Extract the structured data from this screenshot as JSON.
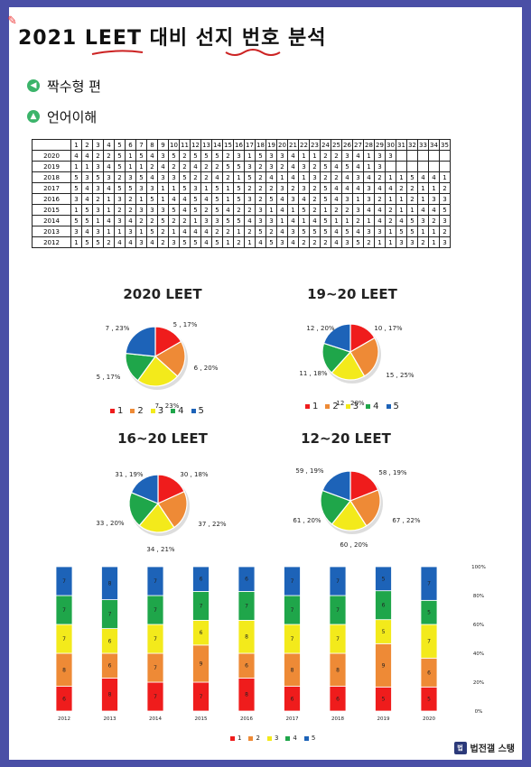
{
  "title": "2021 LEET 대비 선지 번호 분석",
  "section1": {
    "label": "짝수형 편",
    "icon": "speaker-icon"
  },
  "section2": {
    "label": "언어이해",
    "icon": "book-icon"
  },
  "brand": {
    "label": "법전갤 스탱",
    "icon": "logo-icon"
  },
  "colors": {
    "1": "#ef1c1c",
    "2": "#ee8a36",
    "3": "#f3ea1b",
    "4": "#1fa64a",
    "5": "#1d63b8"
  },
  "answer_table": {
    "columns": [
      "1",
      "2",
      "3",
      "4",
      "5",
      "6",
      "7",
      "8",
      "9",
      "10",
      "11",
      "12",
      "13",
      "14",
      "15",
      "16",
      "17",
      "18",
      "19",
      "20",
      "21",
      "22",
      "23",
      "24",
      "25",
      "26",
      "27",
      "28",
      "29",
      "30",
      "31",
      "32",
      "33",
      "34",
      "35"
    ],
    "rows": [
      {
        "year": "2020",
        "values": [
          "4",
          "4",
          "2",
          "2",
          "5",
          "1",
          "5",
          "4",
          "3",
          "5",
          "2",
          "5",
          "5",
          "5",
          "2",
          "3",
          "1",
          "5",
          "3",
          "3",
          "4",
          "1",
          "1",
          "2",
          "2",
          "3",
          "4",
          "1",
          "3",
          "3",
          "",
          "",
          "",
          "",
          ""
        ]
      },
      {
        "year": "2019",
        "values": [
          "1",
          "1",
          "3",
          "4",
          "5",
          "1",
          "1",
          "2",
          "4",
          "2",
          "2",
          "4",
          "2",
          "2",
          "5",
          "5",
          "3",
          "2",
          "3",
          "2",
          "4",
          "3",
          "2",
          "5",
          "4",
          "5",
          "4",
          "1",
          "3",
          "",
          "",
          "",
          "",
          "",
          ""
        ]
      },
      {
        "year": "2018",
        "values": [
          "5",
          "3",
          "5",
          "3",
          "2",
          "3",
          "5",
          "4",
          "3",
          "3",
          "5",
          "2",
          "2",
          "4",
          "2",
          "1",
          "5",
          "2",
          "4",
          "1",
          "4",
          "1",
          "3",
          "2",
          "2",
          "4",
          "3",
          "4",
          "2",
          "1",
          "1",
          "5",
          "4",
          "4",
          "1"
        ]
      },
      {
        "year": "2017",
        "values": [
          "5",
          "4",
          "3",
          "4",
          "5",
          "5",
          "3",
          "3",
          "1",
          "1",
          "5",
          "3",
          "1",
          "5",
          "1",
          "5",
          "2",
          "2",
          "2",
          "3",
          "2",
          "3",
          "2",
          "5",
          "4",
          "4",
          "4",
          "3",
          "4",
          "4",
          "2",
          "2",
          "1",
          "1",
          "2"
        ]
      },
      {
        "year": "2016",
        "values": [
          "3",
          "4",
          "2",
          "1",
          "3",
          "2",
          "1",
          "5",
          "1",
          "4",
          "4",
          "5",
          "4",
          "5",
          "1",
          "5",
          "3",
          "2",
          "5",
          "4",
          "3",
          "4",
          "2",
          "5",
          "4",
          "3",
          "1",
          "3",
          "2",
          "1",
          "1",
          "2",
          "1",
          "3",
          "3"
        ]
      },
      {
        "year": "2015",
        "values": [
          "1",
          "5",
          "3",
          "1",
          "2",
          "2",
          "3",
          "3",
          "3",
          "5",
          "4",
          "5",
          "2",
          "5",
          "4",
          "2",
          "2",
          "3",
          "1",
          "4",
          "1",
          "5",
          "2",
          "1",
          "2",
          "2",
          "3",
          "4",
          "4",
          "2",
          "1",
          "1",
          "4",
          "4",
          "5"
        ]
      },
      {
        "year": "2014",
        "values": [
          "5",
          "5",
          "1",
          "4",
          "3",
          "4",
          "2",
          "2",
          "5",
          "2",
          "2",
          "1",
          "3",
          "3",
          "5",
          "5",
          "4",
          "3",
          "3",
          "1",
          "4",
          "1",
          "4",
          "5",
          "1",
          "1",
          "2",
          "1",
          "4",
          "2",
          "4",
          "5",
          "3",
          "2",
          "3"
        ]
      },
      {
        "year": "2013",
        "values": [
          "3",
          "4",
          "3",
          "1",
          "1",
          "3",
          "1",
          "5",
          "2",
          "1",
          "4",
          "4",
          "4",
          "2",
          "2",
          "1",
          "2",
          "5",
          "2",
          "4",
          "3",
          "5",
          "5",
          "5",
          "4",
          "5",
          "4",
          "3",
          "3",
          "1",
          "5",
          "5",
          "1",
          "1",
          "2"
        ]
      },
      {
        "year": "2012",
        "values": [
          "1",
          "5",
          "5",
          "2",
          "4",
          "4",
          "3",
          "4",
          "2",
          "3",
          "5",
          "5",
          "4",
          "5",
          "1",
          "2",
          "1",
          "4",
          "5",
          "3",
          "4",
          "2",
          "2",
          "2",
          "4",
          "3",
          "5",
          "2",
          "1",
          "1",
          "3",
          "3",
          "2",
          "1",
          "3"
        ]
      }
    ]
  },
  "chart_data": [
    {
      "type": "pie",
      "title": "2020 LEET",
      "categories": [
        "1",
        "2",
        "3",
        "4",
        "5"
      ],
      "values": [
        5,
        6,
        7,
        5,
        7
      ],
      "labels": [
        "5 , 17%",
        "6 , 20%",
        "7 , 23%",
        "5 , 17%",
        "7 , 23%"
      ]
    },
    {
      "type": "pie",
      "title": "19~20 LEET",
      "categories": [
        "1",
        "2",
        "3",
        "4",
        "5"
      ],
      "values": [
        10,
        15,
        12,
        11,
        12
      ],
      "labels": [
        "10 , 17%",
        "15 , 25%",
        "12 , 20%",
        "11 , 18%",
        "12 , 20%"
      ]
    },
    {
      "type": "pie",
      "title": "16~20 LEET",
      "categories": [
        "1",
        "2",
        "3",
        "4",
        "5"
      ],
      "values": [
        30,
        37,
        34,
        33,
        31
      ],
      "labels": [
        "30 , 18%",
        "37 , 22%",
        "34 , 21%",
        "33 , 20%",
        "31 , 19%"
      ]
    },
    {
      "type": "pie",
      "title": "12~20 LEET",
      "categories": [
        "1",
        "2",
        "3",
        "4",
        "5"
      ],
      "values": [
        58,
        67,
        60,
        61,
        59
      ],
      "labels": [
        "58 , 19%",
        "67 , 22%",
        "60 , 20%",
        "61 , 20%",
        "59 , 19%"
      ]
    },
    {
      "type": "bar",
      "stacked": true,
      "normalized": true,
      "categories": [
        "2012",
        "2013",
        "2014",
        "2015",
        "2016",
        "2017",
        "2018",
        "2019",
        "2020"
      ],
      "series": [
        {
          "name": "1",
          "values": [
            6,
            8,
            7,
            7,
            8,
            6,
            6,
            5,
            5
          ]
        },
        {
          "name": "2",
          "values": [
            8,
            6,
            7,
            9,
            6,
            8,
            8,
            9,
            6
          ]
        },
        {
          "name": "3",
          "values": [
            7,
            6,
            7,
            6,
            8,
            7,
            7,
            5,
            7
          ]
        },
        {
          "name": "4",
          "values": [
            7,
            7,
            7,
            7,
            7,
            7,
            7,
            6,
            5
          ]
        },
        {
          "name": "5",
          "values": [
            7,
            8,
            7,
            6,
            6,
            7,
            7,
            5,
            7
          ]
        }
      ],
      "yticks": [
        "0%",
        "20%",
        "40%",
        "60%",
        "80%",
        "100%"
      ],
      "ylim": [
        0,
        100
      ]
    }
  ],
  "legend": [
    "1",
    "2",
    "3",
    "4",
    "5"
  ]
}
